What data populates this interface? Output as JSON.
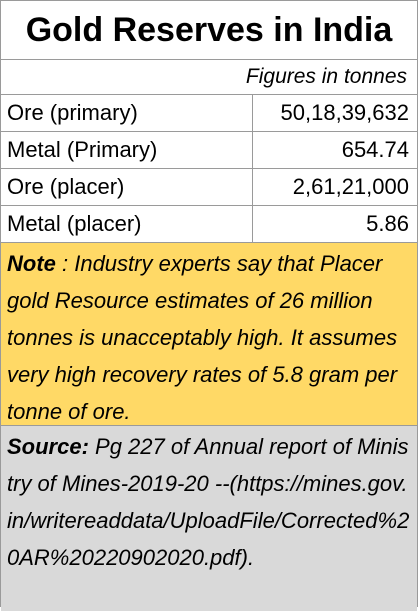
{
  "table": {
    "title": "Gold Reserves in India",
    "subtitle": "Figures in tonnes",
    "rows": [
      {
        "label": "Ore (primary)",
        "value": "50,18,39,632"
      },
      {
        "label": "Metal (Primary)",
        "value": "654.74"
      },
      {
        "label": "Ore (placer)",
        "value": "2,61,21,000"
      },
      {
        "label": "Metal (placer)",
        "value": "5.86"
      }
    ]
  },
  "note": {
    "lead": "Note",
    "text": " : Industry experts say that Placer gold Resource estimates of 26 million tonnes is unacceptably high. It assumes very high  recovery rates  of 5.8 gram per tonne of ore.",
    "background": "#ffd966"
  },
  "source": {
    "lead": "Source:",
    "text": "  Pg 227 of Annual report of Ministry of Mines-2019-20 --(https://mines.gov.in/writereaddata/UploadFile/Corrected%20AR%20220902020.pdf).",
    "background": "#d9d9d9"
  }
}
